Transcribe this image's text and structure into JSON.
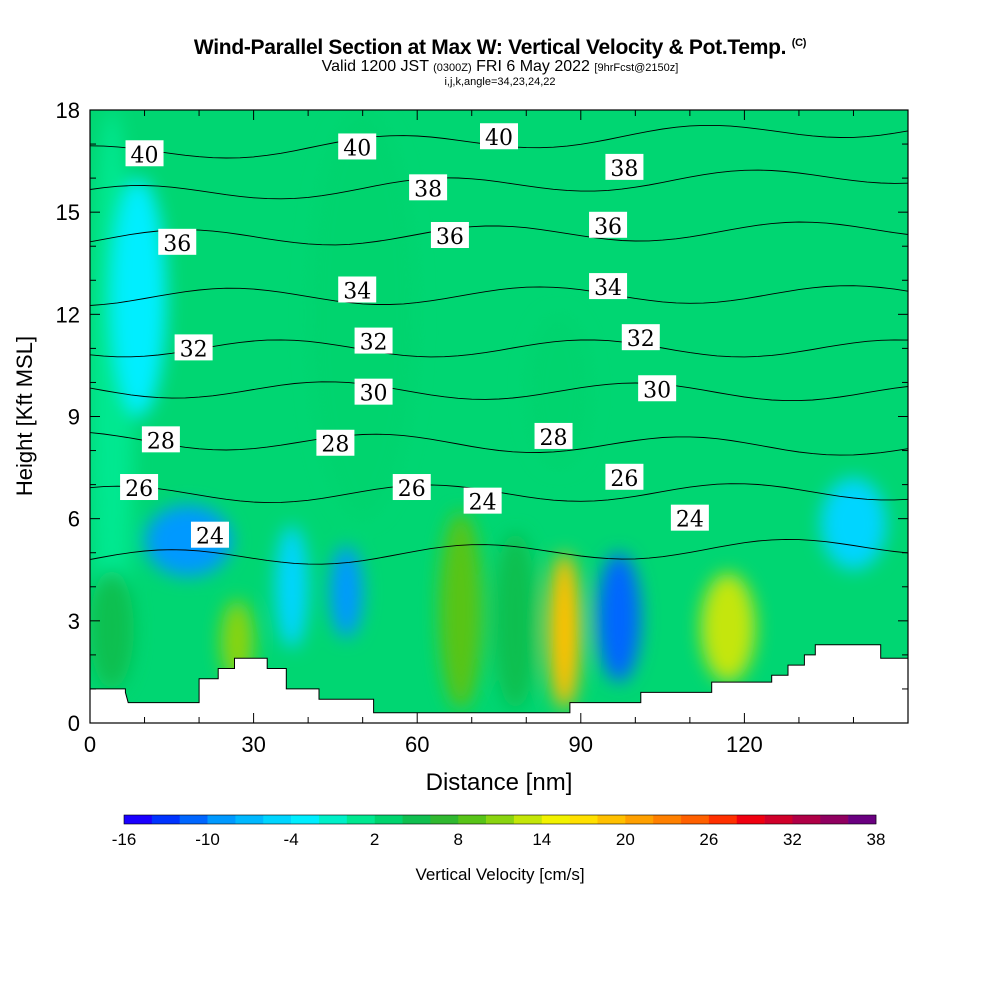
{
  "title": {
    "main": "Wind-Parallel Section at Max W: Vertical Velocity & Pot.Temp.",
    "copyright": "(C)",
    "valid_prefix": "Valid 1200 JST",
    "valid_utc": "(0300Z)",
    "valid_date": "FRI 6 May 2022",
    "forecast": "[9hrFcst@2150z]",
    "indices": "i,j,k,angle=34,23,24,22"
  },
  "chart_data": {
    "type": "heatmap",
    "xlabel": "Distance [nm]",
    "ylabel": "Height [Kft MSL]",
    "xlim": [
      0,
      150
    ],
    "ylim": [
      0,
      18
    ],
    "xticks": [
      0,
      30,
      60,
      90,
      120
    ],
    "yticks": [
      0,
      3,
      6,
      9,
      12,
      15,
      18
    ],
    "colorbar": {
      "label": "Vertical Velocity [cm/s]",
      "min": -16,
      "max": 38,
      "step": 2,
      "tick_labels": [
        -16,
        -10,
        -4,
        2,
        8,
        14,
        20,
        26,
        32,
        38
      ],
      "colors": [
        "#1a00ff",
        "#0033ff",
        "#0066ff",
        "#0099ff",
        "#00b8ff",
        "#00d5ff",
        "#00eeff",
        "#00f0c8",
        "#00e890",
        "#00d46e",
        "#10bf50",
        "#30b830",
        "#58c418",
        "#8ad410",
        "#c4e608",
        "#f2f200",
        "#ffe000",
        "#ffc000",
        "#ffa000",
        "#ff8000",
        "#ff6000",
        "#ff3000",
        "#f00010",
        "#d0002a",
        "#b00046",
        "#900060",
        "#6a0080"
      ]
    },
    "velocity_cells": [
      {
        "x": [
          0,
          8
        ],
        "y": [
          1.0,
          18
        ],
        "w": 0
      },
      {
        "x": [
          0,
          8
        ],
        "y": [
          1.0,
          4.5
        ],
        "w": 4
      },
      {
        "x": [
          4,
          14
        ],
        "y": [
          9,
          16
        ],
        "w": -4
      },
      {
        "x": [
          10,
          26
        ],
        "y": [
          4.3,
          6.4
        ],
        "w": -10
      },
      {
        "x": [
          24,
          30
        ],
        "y": [
          1.2,
          3.6
        ],
        "w": 10
      },
      {
        "x": [
          34,
          40
        ],
        "y": [
          2.2,
          5.8
        ],
        "w": -6
      },
      {
        "x": [
          44,
          50
        ],
        "y": [
          2.5,
          5.2
        ],
        "w": -10
      },
      {
        "x": [
          64,
          72
        ],
        "y": [
          0.4,
          6.2
        ],
        "w": 8
      },
      {
        "x": [
          74,
          82
        ],
        "y": [
          0.4,
          5.6
        ],
        "w": 4
      },
      {
        "x": [
          84,
          90
        ],
        "y": [
          0.4,
          5.0
        ],
        "w": 18
      },
      {
        "x": [
          93,
          101
        ],
        "y": [
          1.2,
          5.0
        ],
        "w": -12
      },
      {
        "x": [
          112,
          122
        ],
        "y": [
          1.2,
          4.4
        ],
        "w": 12
      },
      {
        "x": [
          134,
          146
        ],
        "y": [
          4.5,
          7.2
        ],
        "w": -6
      },
      {
        "x": [
          40,
          60
        ],
        "y": [
          6,
          18
        ],
        "w": 2
      },
      {
        "x": [
          80,
          92
        ],
        "y": [
          7.5,
          12
        ],
        "w": 2
      }
    ],
    "isentropes": [
      {
        "label": "24",
        "y0": 4.8,
        "y1": 5.2
      },
      {
        "label": "26",
        "y0": 6.7,
        "y1": 6.8
      },
      {
        "label": "28",
        "y0": 8.3,
        "y1": 8.1
      },
      {
        "label": "30",
        "y0": 9.8,
        "y1": 9.7
      },
      {
        "label": "32",
        "y0": 11.0,
        "y1": 11.0
      },
      {
        "label": "34",
        "y0": 12.5,
        "y1": 12.6
      },
      {
        "label": "36",
        "y0": 14.2,
        "y1": 14.5
      },
      {
        "label": "38",
        "y0": 15.5,
        "y1": 16.1
      },
      {
        "label": "40",
        "y0": 16.7,
        "y1": 17.5
      }
    ],
    "isentrope_labels": [
      {
        "text": "40",
        "x": 10,
        "y": 16.7
      },
      {
        "text": "40",
        "x": 49,
        "y": 16.9
      },
      {
        "text": "40",
        "x": 75,
        "y": 17.2
      },
      {
        "text": "38",
        "x": 62,
        "y": 15.7
      },
      {
        "text": "38",
        "x": 98,
        "y": 16.3
      },
      {
        "text": "36",
        "x": 16,
        "y": 14.1
      },
      {
        "text": "36",
        "x": 66,
        "y": 14.3
      },
      {
        "text": "36",
        "x": 95,
        "y": 14.6
      },
      {
        "text": "34",
        "x": 49,
        "y": 12.7
      },
      {
        "text": "34",
        "x": 95,
        "y": 12.8
      },
      {
        "text": "32",
        "x": 19,
        "y": 11.0
      },
      {
        "text": "32",
        "x": 52,
        "y": 11.2
      },
      {
        "text": "32",
        "x": 101,
        "y": 11.3
      },
      {
        "text": "30",
        "x": 52,
        "y": 9.7
      },
      {
        "text": "30",
        "x": 104,
        "y": 9.8
      },
      {
        "text": "28",
        "x": 13,
        "y": 8.3
      },
      {
        "text": "28",
        "x": 45,
        "y": 8.2
      },
      {
        "text": "28",
        "x": 85,
        "y": 8.4
      },
      {
        "text": "26",
        "x": 9,
        "y": 6.9
      },
      {
        "text": "26",
        "x": 59,
        "y": 6.9
      },
      {
        "text": "26",
        "x": 98,
        "y": 7.2
      },
      {
        "text": "24",
        "x": 22,
        "y": 5.5
      },
      {
        "text": "24",
        "x": 72,
        "y": 6.5
      },
      {
        "text": "24",
        "x": 110,
        "y": 6.0
      }
    ],
    "terrain": [
      [
        0,
        1.0
      ],
      [
        6.5,
        1.0
      ],
      [
        6.5,
        0.9
      ],
      [
        7,
        0.6
      ],
      [
        20,
        0.6
      ],
      [
        20,
        1.3
      ],
      [
        23.5,
        1.3
      ],
      [
        23.5,
        1.6
      ],
      [
        26.5,
        1.6
      ],
      [
        26.5,
        1.9
      ],
      [
        32.5,
        1.9
      ],
      [
        32.5,
        1.6
      ],
      [
        36,
        1.6
      ],
      [
        36,
        1.0
      ],
      [
        42,
        1.0
      ],
      [
        42,
        0.7
      ],
      [
        52,
        0.7
      ],
      [
        52,
        0.3
      ],
      [
        88,
        0.3
      ],
      [
        88,
        0.6
      ],
      [
        101,
        0.6
      ],
      [
        101,
        0.9
      ],
      [
        114,
        0.9
      ],
      [
        114,
        1.2
      ],
      [
        125,
        1.2
      ],
      [
        125,
        1.4
      ],
      [
        128,
        1.4
      ],
      [
        128,
        1.7
      ],
      [
        131,
        1.7
      ],
      [
        131,
        2.0
      ],
      [
        133,
        2.0
      ],
      [
        133,
        2.3
      ],
      [
        145,
        2.3
      ],
      [
        145,
        1.9
      ],
      [
        150,
        1.9
      ]
    ]
  }
}
